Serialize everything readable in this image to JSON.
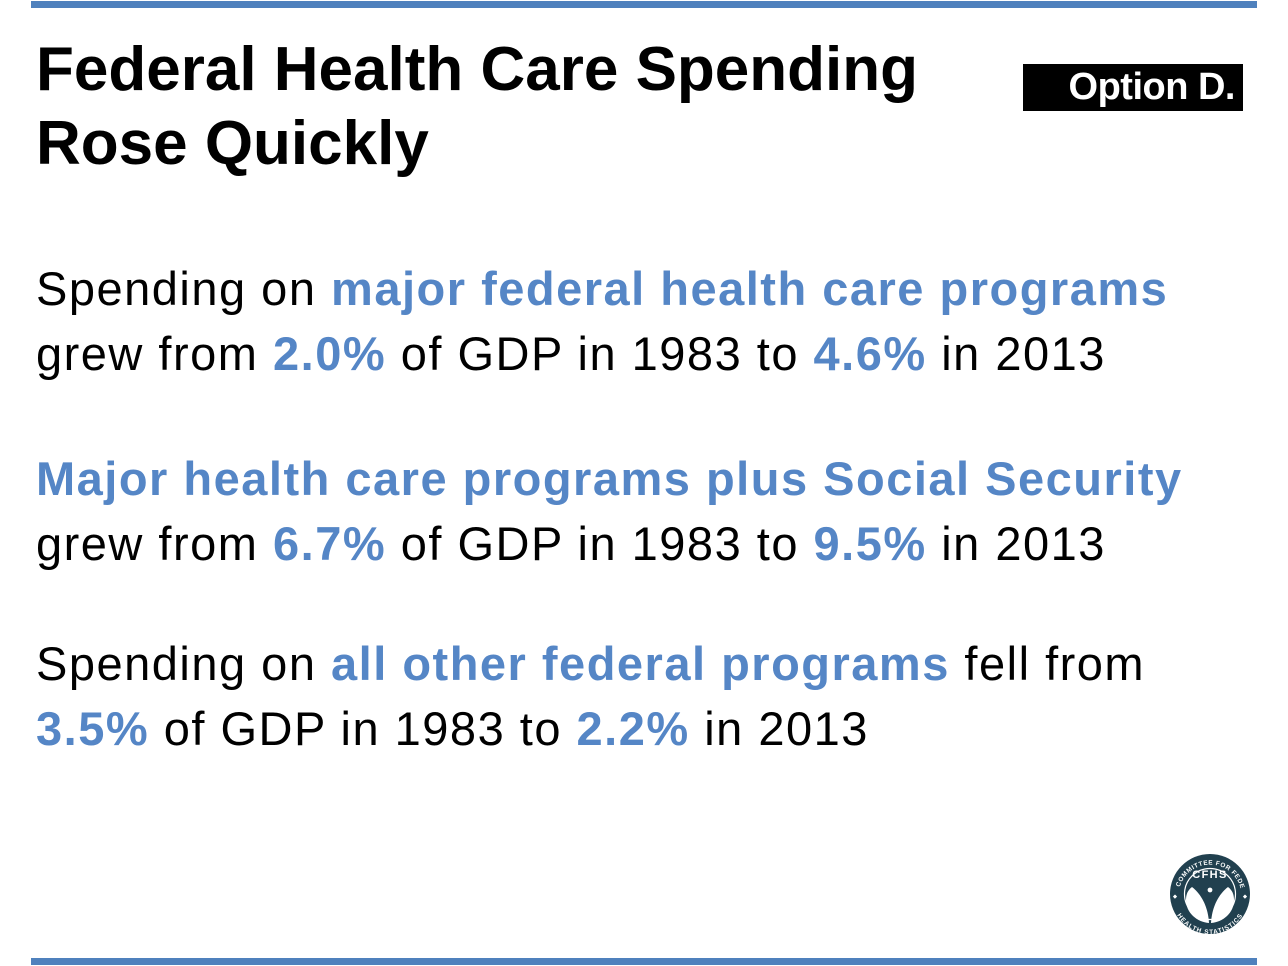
{
  "header": {
    "title_line1": "Federal Health Care Spending",
    "title_line2": "Rose Quickly",
    "badge_label": "Option D."
  },
  "paragraphs": [
    {
      "lines": [
        [
          {
            "t": "Spending on ",
            "b": false
          },
          {
            "t": "major federal health care programs",
            "b": true
          }
        ],
        [
          {
            "t": "grew from ",
            "b": false
          },
          {
            "t": "2.0%",
            "b": true
          },
          {
            "t": " of GDP in 1983 to ",
            "b": false
          },
          {
            "t": "4.6%",
            "b": true
          },
          {
            "t": " in 2013",
            "b": false
          }
        ]
      ]
    },
    {
      "lines": [
        [
          {
            "t": "Major health care programs plus Social Security",
            "b": true
          }
        ],
        [
          {
            "t": "grew from ",
            "b": false
          },
          {
            "t": "6.7%",
            "b": true
          },
          {
            "t": " of GDP in 1983 to ",
            "b": false
          },
          {
            "t": "9.5%",
            "b": true
          },
          {
            "t": " in 2013",
            "b": false
          }
        ]
      ]
    },
    {
      "lines": [
        [
          {
            "t": "Spending on ",
            "b": false
          },
          {
            "t": "all other federal programs",
            "b": true
          },
          {
            "t": " fell from",
            "b": false
          }
        ],
        [
          {
            "t": "3.5%",
            "b": true
          },
          {
            "t": " of GDP in 1983 to ",
            "b": false
          },
          {
            "t": "2.2%",
            "b": true
          },
          {
            "t": " in 2013",
            "b": false
          }
        ]
      ]
    }
  ],
  "logo": {
    "org_abbrev": "CFHS",
    "arc_top": "THE COMMITTEE FOR FEDERAL",
    "arc_bottom": "HEALTH STATISTICS",
    "separator": "◆"
  },
  "colors": {
    "accent_blue": "#5586c6",
    "bar_blue": "#4f81bd",
    "badge_bg": "#000000",
    "badge_text": "#ffffff",
    "title_text": "#000000",
    "body_text": "#000000",
    "logo_navy": "#21404f",
    "background": "#ffffff"
  }
}
